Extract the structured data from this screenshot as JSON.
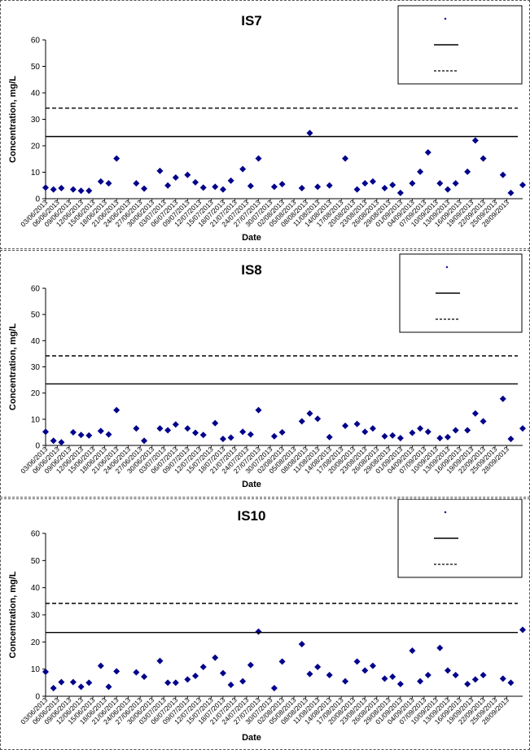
{
  "chart_data": [
    {
      "type": "scatter",
      "title": "IS7",
      "xlabel": "Date",
      "ylabel": "Concentration, mg/L",
      "ylim": [
        0,
        60
      ],
      "yticks": [
        0,
        10,
        20,
        30,
        40,
        50,
        60
      ],
      "grid": false,
      "legend_position": "top-right",
      "x_tick_labels": [
        "03/06/2013",
        "06/06/2013",
        "09/06/2013",
        "12/06/2013",
        "15/06/2013",
        "18/06/2013",
        "21/06/2013",
        "24/06/2013",
        "27/06/2013",
        "30/06/2013",
        "03/07/2013",
        "06/07/2013",
        "09/07/2013",
        "12/07/2013",
        "15/07/2013",
        "18/07/2013",
        "21/07/2013",
        "24/07/2013",
        "27/07/2013",
        "30/07/2013",
        "02/08/2013",
        "05/08/2013",
        "08/08/2013",
        "11/08/2013",
        "14/08/2013",
        "17/08/2013",
        "20/08/2013",
        "23/08/2013",
        "26/08/2013",
        "29/08/2013",
        "01/09/2013",
        "04/09/2013",
        "07/09/2013",
        "10/09/2013",
        "13/09/2013",
        "16/09/2013",
        "19/09/2013",
        "22/09/2013",
        "25/09/2013",
        "28/09/2013"
      ],
      "series": [
        {
          "type": "scatter",
          "color": "#00008b",
          "points": [
            [
              "2013-06-03",
              4.2
            ],
            [
              "2013-06-05",
              3.5
            ],
            [
              "2013-06-07",
              4.0
            ],
            [
              "2013-06-10",
              3.5
            ],
            [
              "2013-06-12",
              3.0
            ],
            [
              "2013-06-14",
              3.0
            ],
            [
              "2013-06-17",
              6.5
            ],
            [
              "2013-06-19",
              5.8
            ],
            [
              "2013-06-21",
              15.2
            ],
            [
              "2013-06-26",
              5.8
            ],
            [
              "2013-06-28",
              3.8
            ],
            [
              "2013-07-02",
              10.5
            ],
            [
              "2013-07-04",
              5.0
            ],
            [
              "2013-07-06",
              8.0
            ],
            [
              "2013-07-09",
              9.0
            ],
            [
              "2013-07-11",
              6.2
            ],
            [
              "2013-07-13",
              4.2
            ],
            [
              "2013-07-16",
              4.5
            ],
            [
              "2013-07-18",
              3.5
            ],
            [
              "2013-07-20",
              6.8
            ],
            [
              "2013-07-23",
              11.2
            ],
            [
              "2013-07-25",
              4.8
            ],
            [
              "2013-07-27",
              15.2
            ],
            [
              "2013-07-31",
              4.5
            ],
            [
              "2013-08-02",
              5.5
            ],
            [
              "2013-08-07",
              4.0
            ],
            [
              "2013-08-09",
              24.8
            ],
            [
              "2013-08-11",
              4.5
            ],
            [
              "2013-08-14",
              5.0
            ],
            [
              "2013-08-18",
              15.2
            ],
            [
              "2013-08-21",
              3.5
            ],
            [
              "2013-08-23",
              5.8
            ],
            [
              "2013-08-25",
              6.5
            ],
            [
              "2013-08-28",
              4.0
            ],
            [
              "2013-08-30",
              5.2
            ],
            [
              "2013-09-01",
              2.2
            ],
            [
              "2013-09-04",
              5.8
            ],
            [
              "2013-09-06",
              10.2
            ],
            [
              "2013-09-08",
              17.5
            ],
            [
              "2013-09-11",
              5.8
            ],
            [
              "2013-09-13",
              3.5
            ],
            [
              "2013-09-15",
              5.8
            ],
            [
              "2013-09-18",
              10.2
            ],
            [
              "2013-09-20",
              22.0
            ],
            [
              "2013-09-22",
              15.2
            ],
            [
              "2013-09-27",
              9.0
            ],
            [
              "2013-09-29",
              2.2
            ],
            [
              "2013-10-02",
              5.2
            ]
          ]
        },
        {
          "type": "hline",
          "y": 23.5,
          "style": "solid",
          "color": "#000000"
        },
        {
          "type": "hline",
          "y": 34.2,
          "style": "dashed",
          "color": "#000000"
        }
      ],
      "legend_entries": [
        "",
        "",
        ""
      ]
    },
    {
      "type": "scatter",
      "title": "IS8",
      "xlabel": "Date",
      "ylabel": "Concentration, mg/L",
      "ylim": [
        0,
        60
      ],
      "yticks": [
        0,
        10,
        20,
        30,
        40,
        50,
        60
      ],
      "grid": false,
      "legend_position": "top-right",
      "x_tick_labels": [
        "03/06/2013",
        "06/06/2013",
        "09/06/2013",
        "12/06/2013",
        "15/06/2013",
        "18/06/2013",
        "21/06/2013",
        "24/06/2013",
        "27/06/2013",
        "30/06/2013",
        "03/07/2013",
        "06/07/2013",
        "09/07/2013",
        "12/07/2013",
        "15/07/2013",
        "18/07/2013",
        "21/07/2013",
        "24/07/2013",
        "27/07/2013",
        "30/07/2013",
        "02/08/2013",
        "05/08/2013",
        "08/08/2013",
        "11/08/2013",
        "14/08/2013",
        "17/08/2013",
        "20/08/2013",
        "23/08/2013",
        "26/08/2013",
        "29/08/2013",
        "01/09/2013",
        "04/09/2013",
        "07/09/2013",
        "10/09/2013",
        "13/09/2013",
        "16/09/2013",
        "19/09/2013",
        "22/09/2013",
        "25/09/2013",
        "28/09/2013"
      ],
      "series": [
        {
          "type": "scatter",
          "color": "#00008b",
          "points": [
            [
              "2013-06-03",
              5.2
            ],
            [
              "2013-06-05",
              1.8
            ],
            [
              "2013-06-07",
              1.2
            ],
            [
              "2013-06-10",
              5.0
            ],
            [
              "2013-06-12",
              4.0
            ],
            [
              "2013-06-14",
              3.8
            ],
            [
              "2013-06-17",
              5.5
            ],
            [
              "2013-06-19",
              4.2
            ],
            [
              "2013-06-21",
              13.5
            ],
            [
              "2013-06-26",
              6.5
            ],
            [
              "2013-06-28",
              1.8
            ],
            [
              "2013-07-02",
              6.5
            ],
            [
              "2013-07-04",
              5.8
            ],
            [
              "2013-07-06",
              8.0
            ],
            [
              "2013-07-09",
              6.5
            ],
            [
              "2013-07-11",
              4.8
            ],
            [
              "2013-07-13",
              4.0
            ],
            [
              "2013-07-16",
              8.5
            ],
            [
              "2013-07-18",
              2.5
            ],
            [
              "2013-07-20",
              3.0
            ],
            [
              "2013-07-23",
              5.2
            ],
            [
              "2013-07-25",
              4.2
            ],
            [
              "2013-07-27",
              13.5
            ],
            [
              "2013-07-31",
              3.5
            ],
            [
              "2013-08-02",
              5.0
            ],
            [
              "2013-08-07",
              9.2
            ],
            [
              "2013-08-09",
              12.2
            ],
            [
              "2013-08-11",
              10.2
            ],
            [
              "2013-08-14",
              3.2
            ],
            [
              "2013-08-18",
              7.5
            ],
            [
              "2013-08-21",
              8.2
            ],
            [
              "2013-08-23",
              5.2
            ],
            [
              "2013-08-25",
              6.5
            ],
            [
              "2013-08-28",
              3.5
            ],
            [
              "2013-08-30",
              3.8
            ],
            [
              "2013-09-01",
              2.8
            ],
            [
              "2013-09-04",
              4.8
            ],
            [
              "2013-09-06",
              6.5
            ],
            [
              "2013-09-08",
              5.2
            ],
            [
              "2013-09-11",
              2.8
            ],
            [
              "2013-09-13",
              3.2
            ],
            [
              "2013-09-15",
              5.8
            ],
            [
              "2013-09-18",
              5.8
            ],
            [
              "2013-09-20",
              12.2
            ],
            [
              "2013-09-22",
              9.2
            ],
            [
              "2013-09-27",
              17.8
            ],
            [
              "2013-09-29",
              2.5
            ],
            [
              "2013-10-02",
              6.5
            ]
          ]
        },
        {
          "type": "hline",
          "y": 23.5,
          "style": "solid",
          "color": "#000000"
        },
        {
          "type": "hline",
          "y": 34.2,
          "style": "dashed",
          "color": "#000000"
        }
      ],
      "legend_entries": [
        "",
        "",
        ""
      ]
    },
    {
      "type": "scatter",
      "title": "IS10",
      "xlabel": "Date",
      "ylabel": "Concentration, mg/L",
      "ylim": [
        0,
        60
      ],
      "yticks": [
        0,
        10,
        20,
        30,
        40,
        50,
        60
      ],
      "grid": false,
      "legend_position": "top-right",
      "x_tick_labels": [
        "03/06/2013",
        "06/06/2013",
        "09/06/2013",
        "12/06/2013",
        "15/06/2013",
        "18/06/2013",
        "21/06/2013",
        "24/06/2013",
        "27/06/2013",
        "30/06/2013",
        "03/07/2013",
        "06/07/2013",
        "09/07/2013",
        "12/07/2013",
        "15/07/2013",
        "18/07/2013",
        "21/07/2013",
        "24/07/2013",
        "27/07/2013",
        "30/07/2013",
        "02/08/2013",
        "05/08/2013",
        "08/08/2013",
        "11/08/2013",
        "14/08/2013",
        "17/08/2013",
        "20/08/2013",
        "23/08/2013",
        "26/08/2013",
        "29/08/2013",
        "01/09/2013",
        "04/09/2013",
        "07/09/2013",
        "10/09/2013",
        "13/09/2013",
        "16/09/2013",
        "19/09/2013",
        "22/09/2013",
        "25/09/2013",
        "28/09/2013"
      ],
      "series": [
        {
          "type": "scatter",
          "color": "#00008b",
          "points": [
            [
              "2013-06-03",
              9.0
            ],
            [
              "2013-06-05",
              3.0
            ],
            [
              "2013-06-07",
              5.2
            ],
            [
              "2013-06-10",
              5.2
            ],
            [
              "2013-06-12",
              3.5
            ],
            [
              "2013-06-14",
              5.0
            ],
            [
              "2013-06-17",
              11.2
            ],
            [
              "2013-06-19",
              3.5
            ],
            [
              "2013-06-21",
              9.2
            ],
            [
              "2013-06-26",
              8.8
            ],
            [
              "2013-06-28",
              7.2
            ],
            [
              "2013-07-02",
              13.0
            ],
            [
              "2013-07-04",
              5.0
            ],
            [
              "2013-07-06",
              5.0
            ],
            [
              "2013-07-09",
              6.2
            ],
            [
              "2013-07-11",
              7.5
            ],
            [
              "2013-07-13",
              10.8
            ],
            [
              "2013-07-16",
              14.2
            ],
            [
              "2013-07-18",
              8.5
            ],
            [
              "2013-07-20",
              4.2
            ],
            [
              "2013-07-23",
              5.5
            ],
            [
              "2013-07-25",
              11.5
            ],
            [
              "2013-07-27",
              23.8
            ],
            [
              "2013-07-31",
              3.0
            ],
            [
              "2013-08-02",
              12.8
            ],
            [
              "2013-08-07",
              19.2
            ],
            [
              "2013-08-09",
              8.2
            ],
            [
              "2013-08-11",
              10.8
            ],
            [
              "2013-08-14",
              7.8
            ],
            [
              "2013-08-18",
              5.5
            ],
            [
              "2013-08-21",
              12.8
            ],
            [
              "2013-08-23",
              9.5
            ],
            [
              "2013-08-25",
              11.2
            ],
            [
              "2013-08-28",
              6.5
            ],
            [
              "2013-08-30",
              7.2
            ],
            [
              "2013-09-01",
              4.5
            ],
            [
              "2013-09-04",
              16.8
            ],
            [
              "2013-09-06",
              5.5
            ],
            [
              "2013-09-08",
              7.8
            ],
            [
              "2013-09-11",
              17.8
            ],
            [
              "2013-09-13",
              9.5
            ],
            [
              "2013-09-15",
              7.8
            ],
            [
              "2013-09-18",
              4.5
            ],
            [
              "2013-09-20",
              6.2
            ],
            [
              "2013-09-22",
              7.8
            ],
            [
              "2013-09-27",
              6.5
            ],
            [
              "2013-09-29",
              5.0
            ],
            [
              "2013-10-02",
              24.5
            ]
          ]
        },
        {
          "type": "hline",
          "y": 23.5,
          "style": "solid",
          "color": "#000000"
        },
        {
          "type": "hline",
          "y": 34.2,
          "style": "dashed",
          "color": "#000000"
        }
      ],
      "legend_entries": [
        "",
        "",
        ""
      ]
    }
  ]
}
